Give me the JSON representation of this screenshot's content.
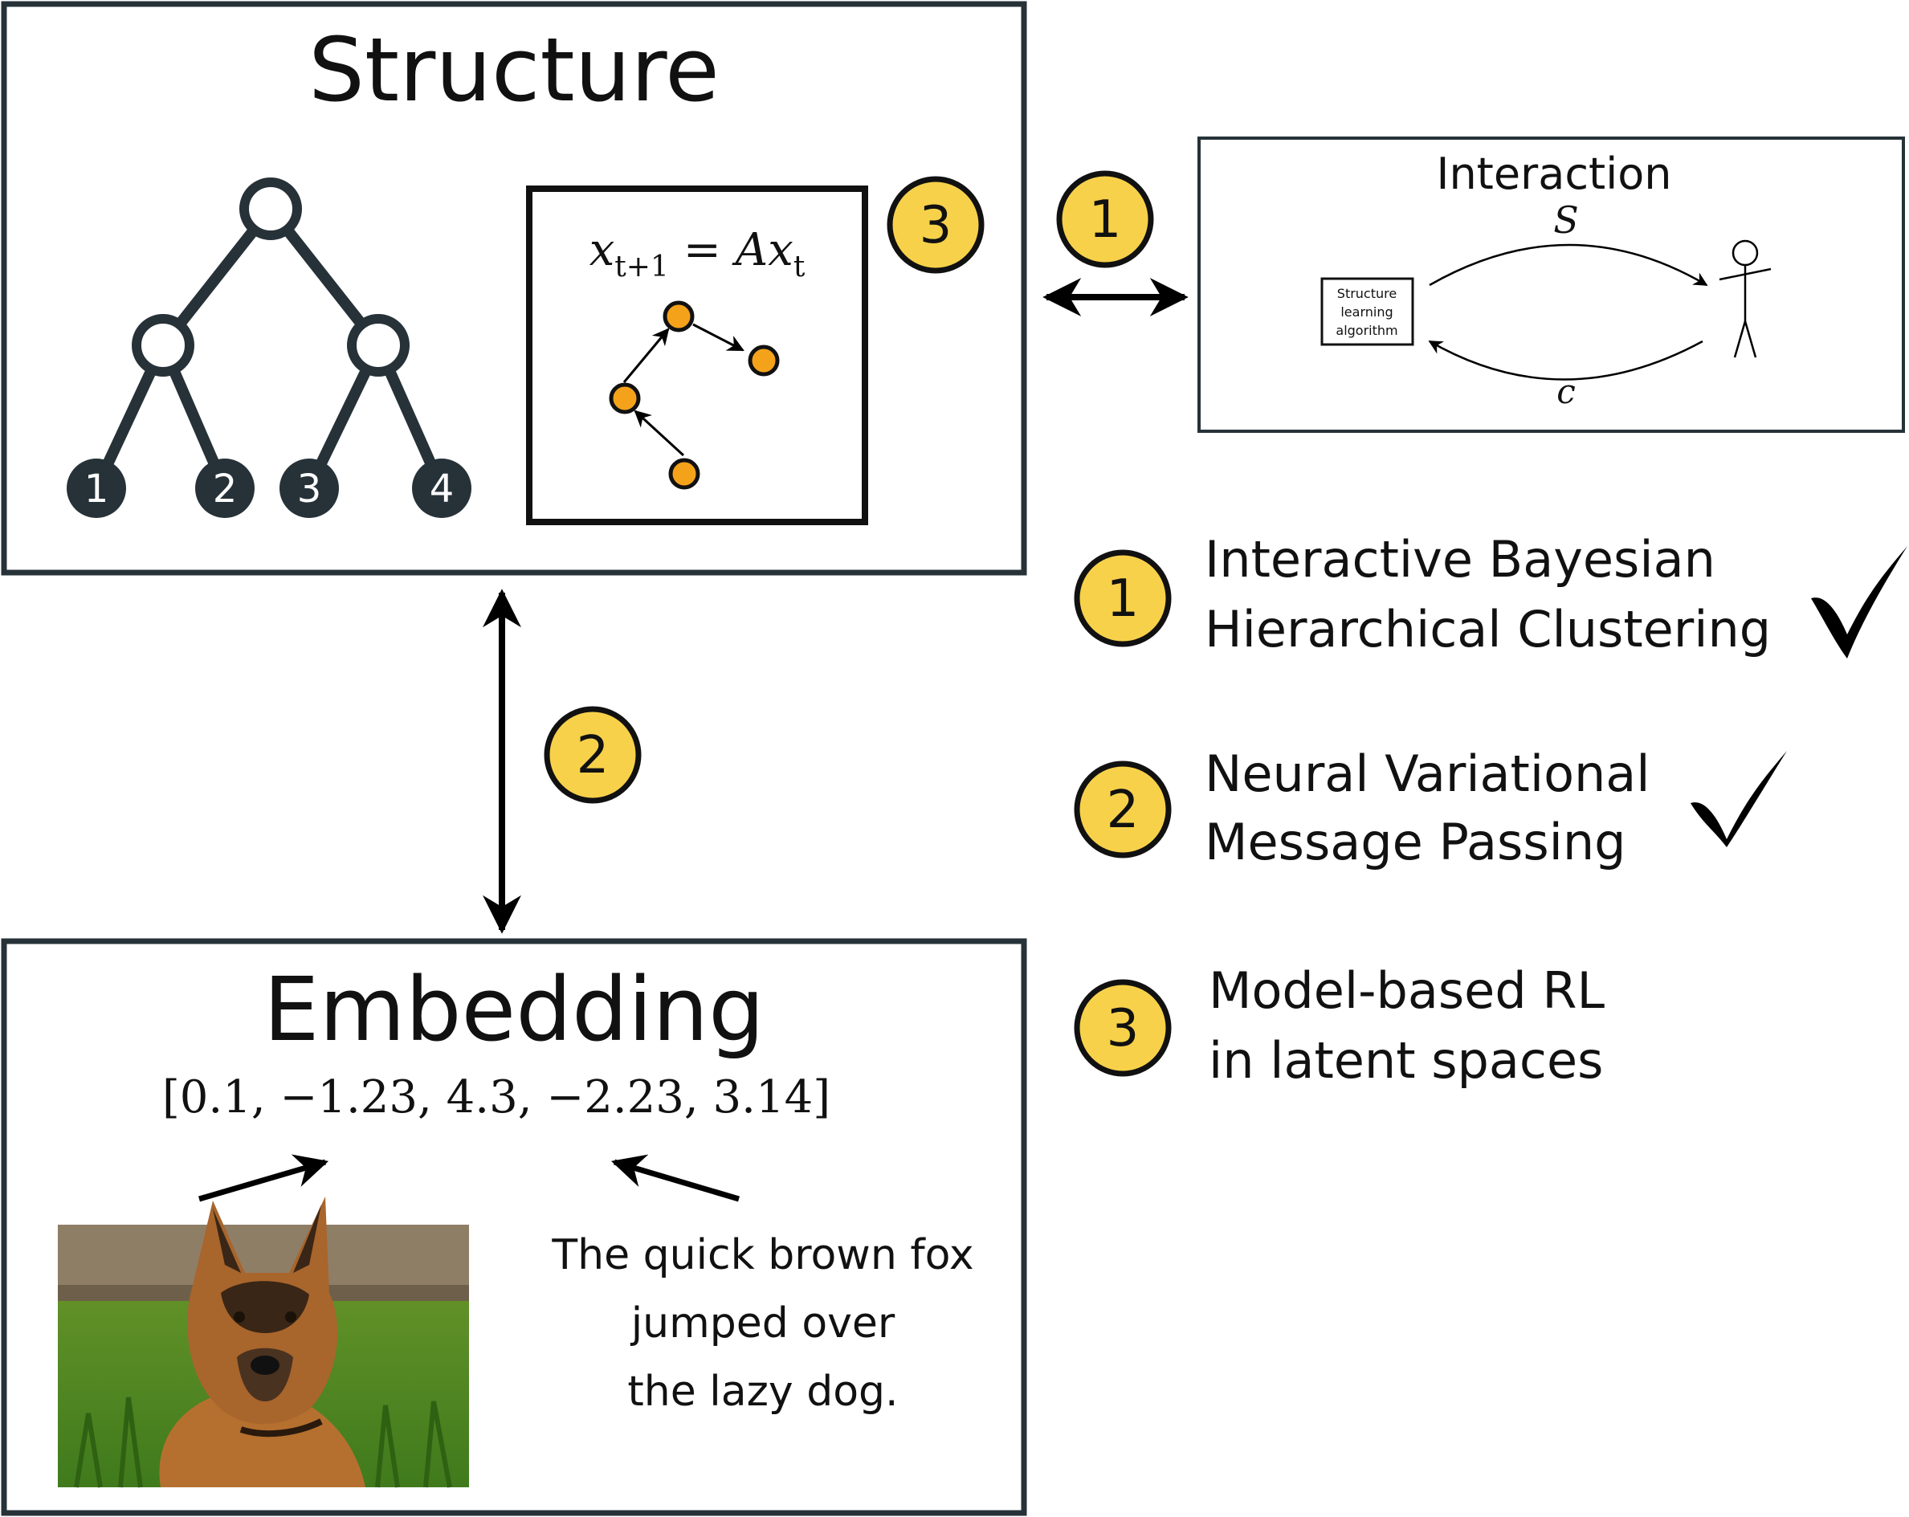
{
  "structure": {
    "title": "Structure",
    "tree_leaves": [
      "1",
      "2",
      "3",
      "4"
    ],
    "equation": {
      "lhs_var": "x",
      "lhs_sub": "t+1",
      "eq": "=",
      "rhs_coef": "A",
      "rhs_var": "x",
      "rhs_sub": "t"
    },
    "badge": "3"
  },
  "link_badges": {
    "structure_interaction": "1",
    "structure_embedding": "2"
  },
  "interaction": {
    "title": "Interaction",
    "box_lines": [
      "Structure",
      "learning",
      "algorithm"
    ],
    "top_label": "S",
    "bottom_label": "c"
  },
  "embedding": {
    "title": "Embedding",
    "vector": "[0.1, −1.23, 4.3, −2.23, 3.14]",
    "image_description": "dog-photo",
    "text_lines": [
      "The quick brown fox",
      "jumped over",
      "the lazy dog."
    ]
  },
  "legend": [
    {
      "badge": "1",
      "lines": [
        "Interactive Bayesian",
        "Hierarchical Clustering"
      ],
      "checked": true
    },
    {
      "badge": "2",
      "lines": [
        "Neural Variational",
        "Message Passing"
      ],
      "checked": true
    },
    {
      "badge": "3",
      "lines": [
        "Model-based RL",
        "in latent spaces"
      ],
      "checked": false
    }
  ],
  "colors": {
    "badge_fill": "#f7d14a",
    "node_fill": "#f5a21b",
    "panel_stroke": "#263238",
    "tree_color": "#263238"
  }
}
